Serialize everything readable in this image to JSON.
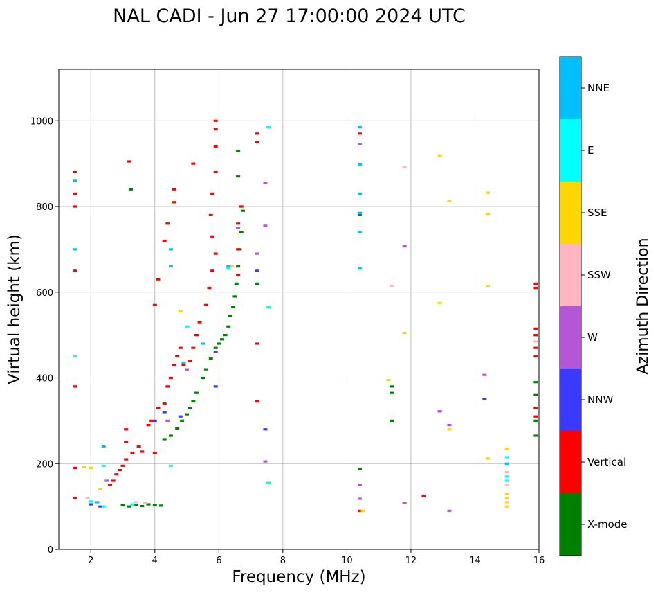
{
  "chart_data": {
    "type": "scatter",
    "title": "NAL CADI - Jun 27 17:00:00 2024 UTC",
    "xlabel": "Frequency (MHz)",
    "ylabel": "Virtual height (km)",
    "xlim": [
      1,
      16
    ],
    "ylim": [
      0,
      1120
    ],
    "xticks": [
      2,
      4,
      6,
      8,
      10,
      12,
      14,
      16
    ],
    "yticks": [
      0,
      200,
      400,
      600,
      800,
      1000
    ],
    "grid": true,
    "colorbar": {
      "title": "Azimuth Direction",
      "categories": [
        {
          "name": "X-mode",
          "color": "#008000"
        },
        {
          "name": "Vertical",
          "color": "#ff0000"
        },
        {
          "name": "NNW",
          "color": "#3a3aff"
        },
        {
          "name": "W",
          "color": "#b556d6"
        },
        {
          "name": "SSW",
          "color": "#ffb6c1"
        },
        {
          "name": "SSE",
          "color": "#ffd700"
        },
        {
          "name": "E",
          "color": "#00ffff"
        },
        {
          "name": "NNE",
          "color": "#00bfff"
        }
      ]
    },
    "series": [
      {
        "name": "X-mode",
        "points": [
          [
            3.0,
            103
          ],
          [
            3.2,
            100
          ],
          [
            3.4,
            104
          ],
          [
            3.6,
            101
          ],
          [
            3.8,
            105
          ],
          [
            4.0,
            103
          ],
          [
            4.2,
            102
          ],
          [
            4.3,
            257
          ],
          [
            4.5,
            265
          ],
          [
            4.7,
            282
          ],
          [
            4.85,
            300
          ],
          [
            5.0,
            315
          ],
          [
            5.1,
            330
          ],
          [
            5.2,
            345
          ],
          [
            5.3,
            365
          ],
          [
            5.5,
            400
          ],
          [
            5.6,
            420
          ],
          [
            5.75,
            445
          ],
          [
            5.9,
            470
          ],
          [
            6.0,
            480
          ],
          [
            6.1,
            490
          ],
          [
            6.2,
            500
          ],
          [
            6.3,
            520
          ],
          [
            6.35,
            545
          ],
          [
            6.45,
            565
          ],
          [
            6.5,
            590
          ],
          [
            6.55,
            620
          ],
          [
            6.6,
            660
          ],
          [
            6.65,
            700
          ],
          [
            6.7,
            740
          ],
          [
            6.75,
            790
          ],
          [
            6.6,
            870
          ],
          [
            6.6,
            930
          ],
          [
            3.25,
            840
          ],
          [
            7.2,
            620
          ],
          [
            10.4,
            188
          ],
          [
            11.4,
            380
          ],
          [
            11.4,
            365
          ],
          [
            11.4,
            300
          ],
          [
            10.4,
            780
          ],
          [
            15.9,
            265
          ],
          [
            15.9,
            300
          ],
          [
            15.9,
            330
          ],
          [
            15.9,
            360
          ],
          [
            15.9,
            390
          ],
          [
            15.9,
            500
          ]
        ]
      },
      {
        "name": "Vertical",
        "points": [
          [
            1.5,
            120
          ],
          [
            1.5,
            190
          ],
          [
            1.5,
            380
          ],
          [
            1.5,
            650
          ],
          [
            1.5,
            800
          ],
          [
            1.5,
            830
          ],
          [
            1.5,
            880
          ],
          [
            2.6,
            150
          ],
          [
            2.7,
            160
          ],
          [
            2.8,
            175
          ],
          [
            2.9,
            185
          ],
          [
            3.0,
            195
          ],
          [
            3.1,
            210
          ],
          [
            3.1,
            250
          ],
          [
            3.1,
            280
          ],
          [
            3.3,
            225
          ],
          [
            3.5,
            240
          ],
          [
            3.6,
            228
          ],
          [
            3.8,
            290
          ],
          [
            3.9,
            300
          ],
          [
            4.0,
            225
          ],
          [
            4.1,
            330
          ],
          [
            4.3,
            340
          ],
          [
            4.4,
            380
          ],
          [
            4.5,
            400
          ],
          [
            4.6,
            430
          ],
          [
            4.7,
            450
          ],
          [
            4.8,
            470
          ],
          [
            4.9,
            430
          ],
          [
            5.0,
            420
          ],
          [
            5.1,
            440
          ],
          [
            5.2,
            470
          ],
          [
            5.3,
            500
          ],
          [
            5.4,
            530
          ],
          [
            5.6,
            570
          ],
          [
            5.7,
            610
          ],
          [
            5.8,
            650
          ],
          [
            5.9,
            690
          ],
          [
            5.8,
            730
          ],
          [
            5.75,
            780
          ],
          [
            5.8,
            830
          ],
          [
            5.9,
            880
          ],
          [
            5.9,
            940
          ],
          [
            5.9,
            980
          ],
          [
            5.9,
            1000
          ],
          [
            4.0,
            570
          ],
          [
            4.1,
            630
          ],
          [
            4.3,
            720
          ],
          [
            4.4,
            760
          ],
          [
            4.6,
            810
          ],
          [
            4.6,
            840
          ],
          [
            5.2,
            900
          ],
          [
            7.2,
            950
          ],
          [
            7.2,
            970
          ],
          [
            7.2,
            480
          ],
          [
            7.2,
            345
          ],
          [
            3.2,
            905
          ],
          [
            6.6,
            640
          ],
          [
            6.6,
            700
          ],
          [
            6.6,
            760
          ],
          [
            6.7,
            800
          ],
          [
            10.4,
            90
          ],
          [
            10.4,
            970
          ],
          [
            12.4,
            125
          ],
          [
            15.9,
            450
          ],
          [
            15.9,
            470
          ],
          [
            15.9,
            500
          ],
          [
            15.9,
            515
          ],
          [
            15.9,
            610
          ],
          [
            15.9,
            620
          ],
          [
            15.9,
            310
          ],
          [
            15.9,
            330
          ]
        ]
      },
      {
        "name": "NNW",
        "points": [
          [
            2.0,
            105
          ],
          [
            2.3,
            100
          ],
          [
            4.0,
            300
          ],
          [
            4.3,
            320
          ],
          [
            4.8,
            310
          ],
          [
            5.9,
            380
          ],
          [
            5.9,
            460
          ],
          [
            7.2,
            650
          ],
          [
            7.45,
            280
          ],
          [
            12.9,
            322
          ],
          [
            14.3,
            350
          ]
        ]
      },
      {
        "name": "W",
        "points": [
          [
            2.5,
            160
          ],
          [
            4.4,
            300
          ],
          [
            5.0,
            420
          ],
          [
            6.6,
            750
          ],
          [
            7.2,
            690
          ],
          [
            7.45,
            755
          ],
          [
            7.45,
            855
          ],
          [
            7.45,
            205
          ],
          [
            10.4,
            150
          ],
          [
            10.4,
            118
          ],
          [
            10.4,
            945
          ],
          [
            11.8,
            108
          ],
          [
            11.8,
            707
          ],
          [
            12.9,
            322
          ],
          [
            13.2,
            290
          ],
          [
            13.2,
            90
          ],
          [
            14.3,
            407
          ]
        ]
      },
      {
        "name": "SSW",
        "points": [
          [
            1.9,
            120
          ],
          [
            3.4,
            110
          ],
          [
            3.7,
            108
          ],
          [
            11.4,
            615
          ],
          [
            11.8,
            892
          ],
          [
            15.0,
            120
          ],
          [
            15.0,
            150
          ],
          [
            15.0,
            180
          ],
          [
            15.9,
            485
          ]
        ]
      },
      {
        "name": "SSE",
        "points": [
          [
            1.8,
            192
          ],
          [
            2.0,
            190
          ],
          [
            2.3,
            140
          ],
          [
            4.8,
            555
          ],
          [
            6.4,
            660
          ],
          [
            11.3,
            395
          ],
          [
            11.8,
            505
          ],
          [
            12.9,
            918
          ],
          [
            12.9,
            575
          ],
          [
            13.2,
            280
          ],
          [
            13.2,
            812
          ],
          [
            14.4,
            212
          ],
          [
            14.4,
            615
          ],
          [
            14.4,
            782
          ],
          [
            14.4,
            832
          ],
          [
            15.0,
            100
          ],
          [
            15.0,
            110
          ],
          [
            15.0,
            120
          ],
          [
            15.0,
            130
          ],
          [
            15.0,
            235
          ],
          [
            10.5,
            90
          ]
        ]
      },
      {
        "name": "E",
        "points": [
          [
            1.5,
            450
          ],
          [
            2.0,
            112
          ],
          [
            2.4,
            100
          ],
          [
            2.4,
            195
          ],
          [
            3.3,
            105
          ],
          [
            4.5,
            195
          ],
          [
            5.0,
            520
          ],
          [
            6.3,
            655
          ],
          [
            7.55,
            565
          ],
          [
            7.55,
            985
          ],
          [
            7.55,
            155
          ],
          [
            15.0,
            160
          ],
          [
            15.0,
            170
          ],
          [
            15.0,
            200
          ],
          [
            15.0,
            215
          ]
        ]
      },
      {
        "name": "NNE",
        "points": [
          [
            1.5,
            860
          ],
          [
            1.5,
            700
          ],
          [
            2.2,
            110
          ],
          [
            2.4,
            240
          ],
          [
            4.5,
            660
          ],
          [
            4.5,
            700
          ],
          [
            4.9,
            435
          ],
          [
            5.5,
            480
          ],
          [
            6.3,
            660
          ],
          [
            10.4,
            655
          ],
          [
            10.4,
            740
          ],
          [
            10.4,
            785
          ],
          [
            10.4,
            830
          ],
          [
            10.4,
            898
          ],
          [
            10.4,
            985
          ],
          [
            15.0,
            200
          ]
        ]
      }
    ]
  }
}
